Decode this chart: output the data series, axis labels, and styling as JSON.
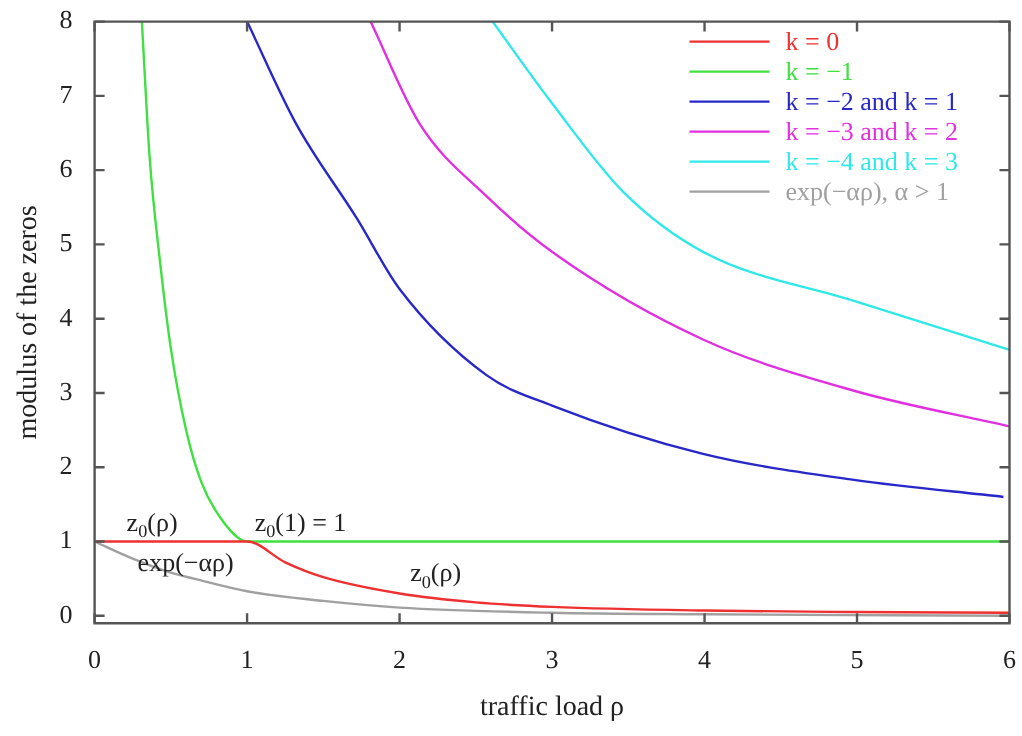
{
  "chart_data": {
    "type": "line",
    "xlabel": "traffic load ρ",
    "ylabel": "modulus of the zeros",
    "xlim": [
      0,
      6
    ],
    "xticks": [
      0,
      1,
      2,
      3,
      4,
      5,
      6
    ],
    "ylim": [
      -0.1,
      8
    ],
    "yticks": [
      0,
      1,
      2,
      3,
      4,
      5,
      6,
      7,
      8
    ],
    "grid": false,
    "legend": "top right",
    "marker": "none",
    "line_style": "solid",
    "series": [
      {
        "name": "k = 0",
        "color": "#ee3030",
        "x": [
          0,
          1,
          1.25,
          1.5,
          2,
          2.5,
          3,
          4,
          5,
          6
        ],
        "values": [
          1,
          1,
          0.72,
          0.52,
          0.3,
          0.18,
          0.12,
          0.07,
          0.05,
          0.04
        ]
      },
      {
        "name": "k = −1",
        "color": "#40e040",
        "x": [
          0.31,
          0.36,
          0.43,
          0.5,
          0.6,
          0.7,
          0.85,
          1,
          6
        ],
        "values": [
          8,
          6.2,
          4.75,
          3.6,
          2.5,
          1.8,
          1.25,
          1,
          1
        ]
      },
      {
        "name": "k = −2 and k = 1",
        "color": "#2828c8",
        "x": [
          1.0,
          1.32,
          1.72,
          2.0,
          2.57,
          3.0,
          3.99,
          4.98,
          5.96
        ],
        "values": [
          8,
          6.63,
          5.35,
          4.4,
          3.24,
          2.83,
          2.18,
          1.83,
          1.6
        ]
      },
      {
        "name": "k = −3 and k = 2",
        "color": "#e030e0",
        "x": [
          1.81,
          2.13,
          2.57,
          3.0,
          3.99,
          4.98,
          6
        ],
        "values": [
          8,
          6.63,
          5.65,
          4.9,
          3.72,
          3.03,
          2.55
        ]
      },
      {
        "name": "k = −4 and k = 3",
        "color": "#30e8e8",
        "x": [
          2.61,
          3.0,
          3.47,
          3.99,
          4.98,
          6
        ],
        "values": [
          8,
          6.9,
          5.7,
          4.9,
          4.24,
          3.58
        ]
      },
      {
        "name": "exp(−αρ), α > 1",
        "color": "#a0a0a0",
        "x": [
          0,
          0.25,
          0.5,
          0.65,
          1,
          1.5,
          2,
          3,
          4,
          6
        ],
        "values": [
          1,
          0.77,
          0.58,
          0.5,
          0.33,
          0.2,
          0.11,
          0.04,
          0.02,
          0
        ]
      }
    ],
    "annotations": [
      "z$_{0}$(ρ)",
      "z$_{0}$(1) = 1",
      "exp(−αρ)",
      "z$_{0}$(ρ)"
    ]
  }
}
